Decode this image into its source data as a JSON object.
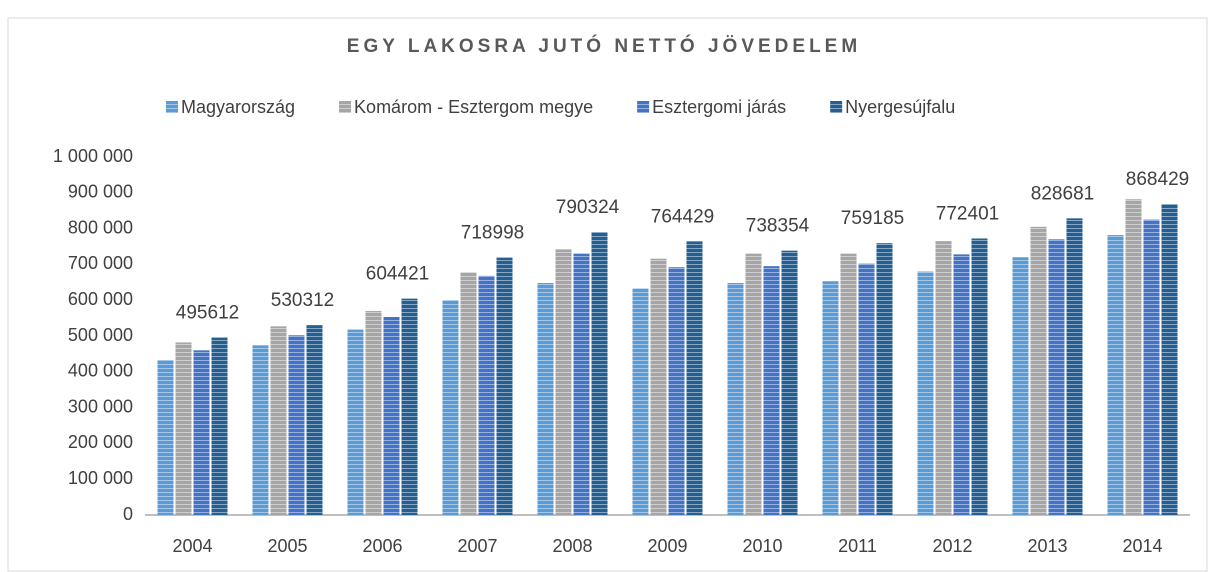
{
  "chart_data": {
    "type": "bar",
    "title": "EGY LAKOSRA JUTÓ NETTÓ JÖVEDELEM",
    "categories": [
      "2004",
      "2005",
      "2006",
      "2007",
      "2008",
      "2009",
      "2010",
      "2011",
      "2012",
      "2013",
      "2014"
    ],
    "series": [
      {
        "name": "Magyarország",
        "color": "#5b9bd5",
        "values": [
          433000,
          474000,
          518000,
          600000,
          648000,
          633000,
          648000,
          653000,
          680000,
          720000,
          782000
        ]
      },
      {
        "name": "Komárom - Esztergom megye",
        "color": "#a5a5a5",
        "values": [
          482000,
          527000,
          570000,
          678000,
          742000,
          716000,
          730000,
          730000,
          765000,
          805000,
          882000
        ]
      },
      {
        "name": "Esztergomi járás",
        "color": "#4472c4",
        "values": [
          460000,
          502000,
          553000,
          668000,
          730000,
          692000,
          695000,
          702000,
          728000,
          770000,
          825000
        ]
      },
      {
        "name": "Nyergesújfalu",
        "color": "#255e91",
        "values": [
          495612,
          530312,
          604421,
          718998,
          790324,
          764429,
          738354,
          759185,
          772401,
          828681,
          868429
        ],
        "show_labels": true
      }
    ],
    "ylim": [
      0,
      1000000
    ],
    "yticks": [
      0,
      {
        "value": 100000,
        "label": "100 000"
      },
      {
        "value": 200000,
        "label": "200 000"
      },
      {
        "value": 300000,
        "label": "300 000"
      },
      {
        "value": 400000,
        "label": "400 000"
      },
      {
        "value": 500000,
        "label": "500 000"
      },
      {
        "value": 600000,
        "label": "600 000"
      },
      {
        "value": 700000,
        "label": "700 000"
      },
      {
        "value": 800000,
        "label": "800 000"
      },
      {
        "value": 900000,
        "label": "900 000"
      },
      {
        "value": 1000000,
        "label": "1 000 000"
      }
    ],
    "grid": false,
    "legend": "top"
  }
}
